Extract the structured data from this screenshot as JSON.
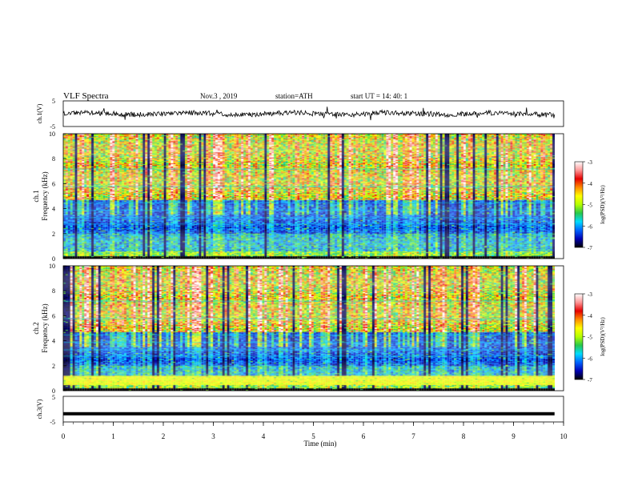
{
  "header": {
    "title": "VLF  Spectra",
    "date": "Nov.3  , 2019",
    "station": "station=ATH",
    "start": "start  UT  =   14: 40: 1"
  },
  "colorbar": {
    "label": "log(PSD)(V²/Hz)",
    "ticks": [
      "-3",
      "-4",
      "-5",
      "-6",
      "-7"
    ],
    "stops": [
      "#000000",
      "#0000b4",
      "#0064ff",
      "#00dcff",
      "#28c84b",
      "#b4ff00",
      "#ffff00",
      "#ff8c00",
      "#e60000",
      "#ff9696",
      "#ffffff"
    ]
  },
  "colors": {
    "trace": "#000000",
    "background_low": "#00118a",
    "axis": "#000000"
  },
  "chart_data": [
    {
      "type": "line",
      "name": "ch1-waveform",
      "ylabel": "ch.1(V)",
      "ylim": [
        -5,
        5
      ],
      "yticks": [
        "5",
        "-5"
      ],
      "xlim": [
        0,
        10
      ],
      "mean_level": 0,
      "amplitude": 1.2
    },
    {
      "type": "heatmap",
      "name": "ch1-spectrogram",
      "ylabel_channel": "ch.1",
      "ylabel": "Frequency  (kHz)",
      "ylim": [
        0,
        10
      ],
      "yticks": [
        "0",
        "2",
        "4",
        "6",
        "8",
        "10"
      ],
      "xlim": [
        0,
        9.82
      ],
      "zlim": [
        -7,
        -3
      ]
    },
    {
      "type": "heatmap",
      "name": "ch2-spectrogram",
      "ylabel_channel": "ch.2",
      "ylabel": "Frequency  (kHz)",
      "ylim": [
        0,
        10
      ],
      "yticks": [
        "0",
        "2",
        "4",
        "6",
        "8",
        "10"
      ],
      "xlim": [
        0,
        9.82
      ],
      "zlim": [
        -7,
        -3
      ]
    },
    {
      "type": "line",
      "name": "ch3-waveform",
      "ylabel": "ch.3(V)",
      "ylim": [
        -5,
        5
      ],
      "yticks": [
        "5",
        "-5"
      ],
      "xlim": [
        0,
        10
      ],
      "mean_level": -1.8,
      "amplitude": 0
    }
  ],
  "xaxis": {
    "label": "Time  (min)",
    "ticks": [
      "0",
      "1",
      "2",
      "3",
      "4",
      "5",
      "6",
      "7",
      "8",
      "9",
      "10"
    ]
  }
}
